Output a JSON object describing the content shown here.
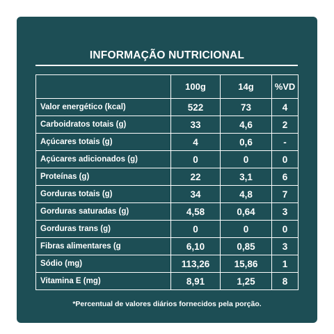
{
  "panel": {
    "title": "INFORMAÇÃO NUTRICIONAL",
    "footnote": "*Percentual de valores diários fornecidos pela porção."
  },
  "table": {
    "headers": [
      "",
      "100g",
      "14g",
      "%VD"
    ],
    "rows": [
      {
        "label": "Valor energético (kcal)",
        "per100": "522",
        "per14": "73",
        "vd": "4"
      },
      {
        "label": "Carboidratos totais (g)",
        "per100": "33",
        "per14": "4,6",
        "vd": "2"
      },
      {
        "label": "Açúcares totais (g)",
        "per100": "4",
        "per14": "0,6",
        "vd": "-"
      },
      {
        "label": "Açúcares adicionados (g)",
        "per100": "0",
        "per14": "0",
        "vd": "0"
      },
      {
        "label": "Proteínas (g)",
        "per100": "22",
        "per14": "3,1",
        "vd": "6"
      },
      {
        "label": "Gorduras totais (g)",
        "per100": "34",
        "per14": "4,8",
        "vd": "7"
      },
      {
        "label": "Gorduras saturadas (g)",
        "per100": "4,58",
        "per14": "0,64",
        "vd": "3"
      },
      {
        "label": "Gorduras trans (g)",
        "per100": "0",
        "per14": "0",
        "vd": "0"
      },
      {
        "label": "Fibras alimentares (g",
        "per100": "6,10",
        "per14": "0,85",
        "vd": "3"
      },
      {
        "label": "Sódio (mg)",
        "per100": "113,26",
        "per14": "15,86",
        "vd": "1"
      },
      {
        "label": "Vitamina E (mg)",
        "per100": "8,91",
        "per14": "1,25",
        "vd": "8"
      }
    ]
  },
  "colors": {
    "panel_background": "#1d4e55",
    "text": "#ffffff",
    "page_background": "#ffffff"
  }
}
